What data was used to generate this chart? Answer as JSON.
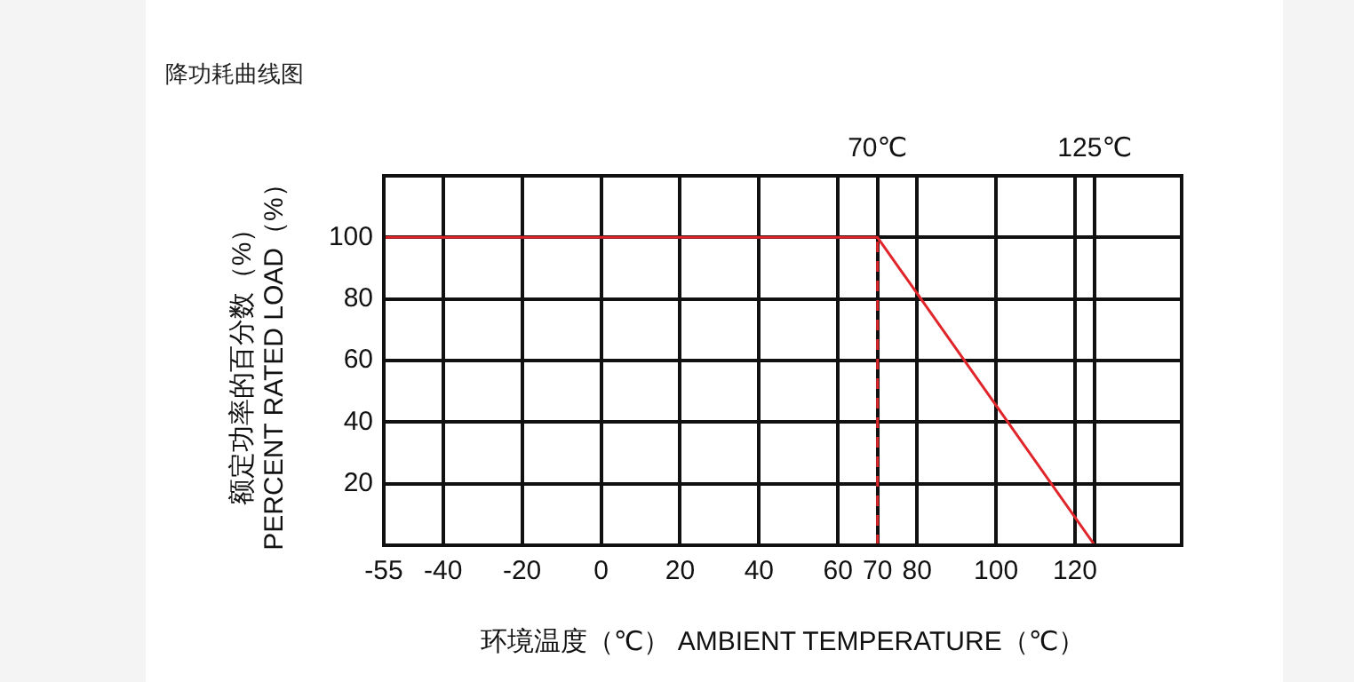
{
  "chart_data": {
    "type": "line",
    "title": "降功耗曲线图",
    "xlabel": "环境温度（℃） AMBIENT TEMPERATURE（℃）",
    "ylabel": [
      "额定功率的百分数（%）",
      "PERCENT RATED LOAD（%）"
    ],
    "xlim": [
      -55,
      147
    ],
    "xticks": [
      -55,
      -40,
      -20,
      0,
      20,
      40,
      60,
      70,
      80,
      100,
      120
    ],
    "x2lim": [
      -55,
      147
    ],
    "x2ticks": [
      {
        "value": 70,
        "label": "70℃"
      },
      {
        "value": 125,
        "label": "125℃"
      }
    ],
    "ylim": [
      0,
      120
    ],
    "yticks": [
      20,
      40,
      60,
      80,
      100
    ],
    "grid": true,
    "legend": false,
    "marker": "none",
    "series": [
      {
        "color": "#e0262b",
        "x": [
          -55,
          70,
          125
        ],
        "values": [
          100,
          100,
          0
        ],
        "line_style": "solid"
      },
      {
        "color": "#e0262b",
        "x": [
          70,
          70
        ],
        "values": [
          0,
          100
        ],
        "line_style": "dashed"
      }
    ]
  }
}
